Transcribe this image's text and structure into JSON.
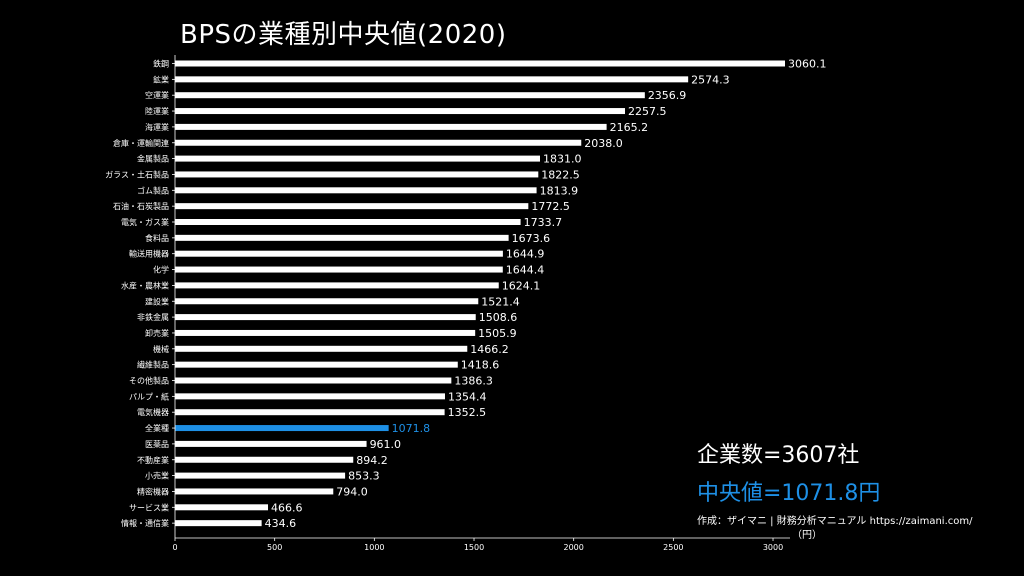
{
  "chart_data": {
    "type": "bar",
    "orientation": "horizontal",
    "title": "BPSの業種別中央値(2020)",
    "categories": [
      "鉄鋼",
      "鉱業",
      "空運業",
      "陸運業",
      "海運業",
      "倉庫・運輸関連",
      "金属製品",
      "ガラス・土石製品",
      "ゴム製品",
      "石油・石炭製品",
      "電気・ガス業",
      "食料品",
      "輸送用機器",
      "化学",
      "水産・農林業",
      "建設業",
      "非鉄金属",
      "卸売業",
      "機械",
      "繊維製品",
      "その他製品",
      "パルプ・紙",
      "電気機器",
      "全業種",
      "医薬品",
      "不動産業",
      "小売業",
      "精密機器",
      "サービス業",
      "情報・通信業"
    ],
    "values": [
      3060.1,
      2574.3,
      2356.9,
      2257.5,
      2165.2,
      2038.0,
      1831.0,
      1822.5,
      1813.9,
      1772.5,
      1733.7,
      1673.6,
      1644.9,
      1644.4,
      1624.1,
      1521.4,
      1508.6,
      1505.9,
      1466.2,
      1418.6,
      1386.3,
      1354.4,
      1352.5,
      1071.8,
      961.0,
      894.2,
      853.3,
      794.0,
      466.6,
      434.6
    ],
    "value_labels": [
      "3060.1",
      "2574.3",
      "2356.9",
      "2257.5",
      "2165.2",
      "2038.0",
      "1831.0",
      "1822.5",
      "1813.9",
      "1772.5",
      "1733.7",
      "1673.6",
      "1644.9",
      "1644.4",
      "1624.1",
      "1521.4",
      "1508.6",
      "1505.9",
      "1466.2",
      "1418.6",
      "1386.3",
      "1354.4",
      "1352.5",
      "1071.8",
      "961.0",
      "894.2",
      "853.3",
      "794.0",
      "466.6",
      "434.6"
    ],
    "highlight_category": "全業種",
    "xticks": [
      0,
      500,
      1000,
      1500,
      2000,
      2500,
      3000
    ],
    "xtick_labels": [
      "0",
      "500",
      "1000",
      "1500",
      "2000",
      "2500",
      "3000"
    ],
    "xlim": [
      0,
      3060.1
    ],
    "grid": false,
    "colors": {
      "bar": "#ffffff",
      "highlight": "#1e90e6",
      "background": "#000000"
    }
  },
  "annotations": {
    "count": "企業数=3607社",
    "median": "中央値=1071.8円",
    "source": "作成：ザイマニ | 財務分析マニュアル https://zaimani.com/",
    "unit": "（円）"
  }
}
